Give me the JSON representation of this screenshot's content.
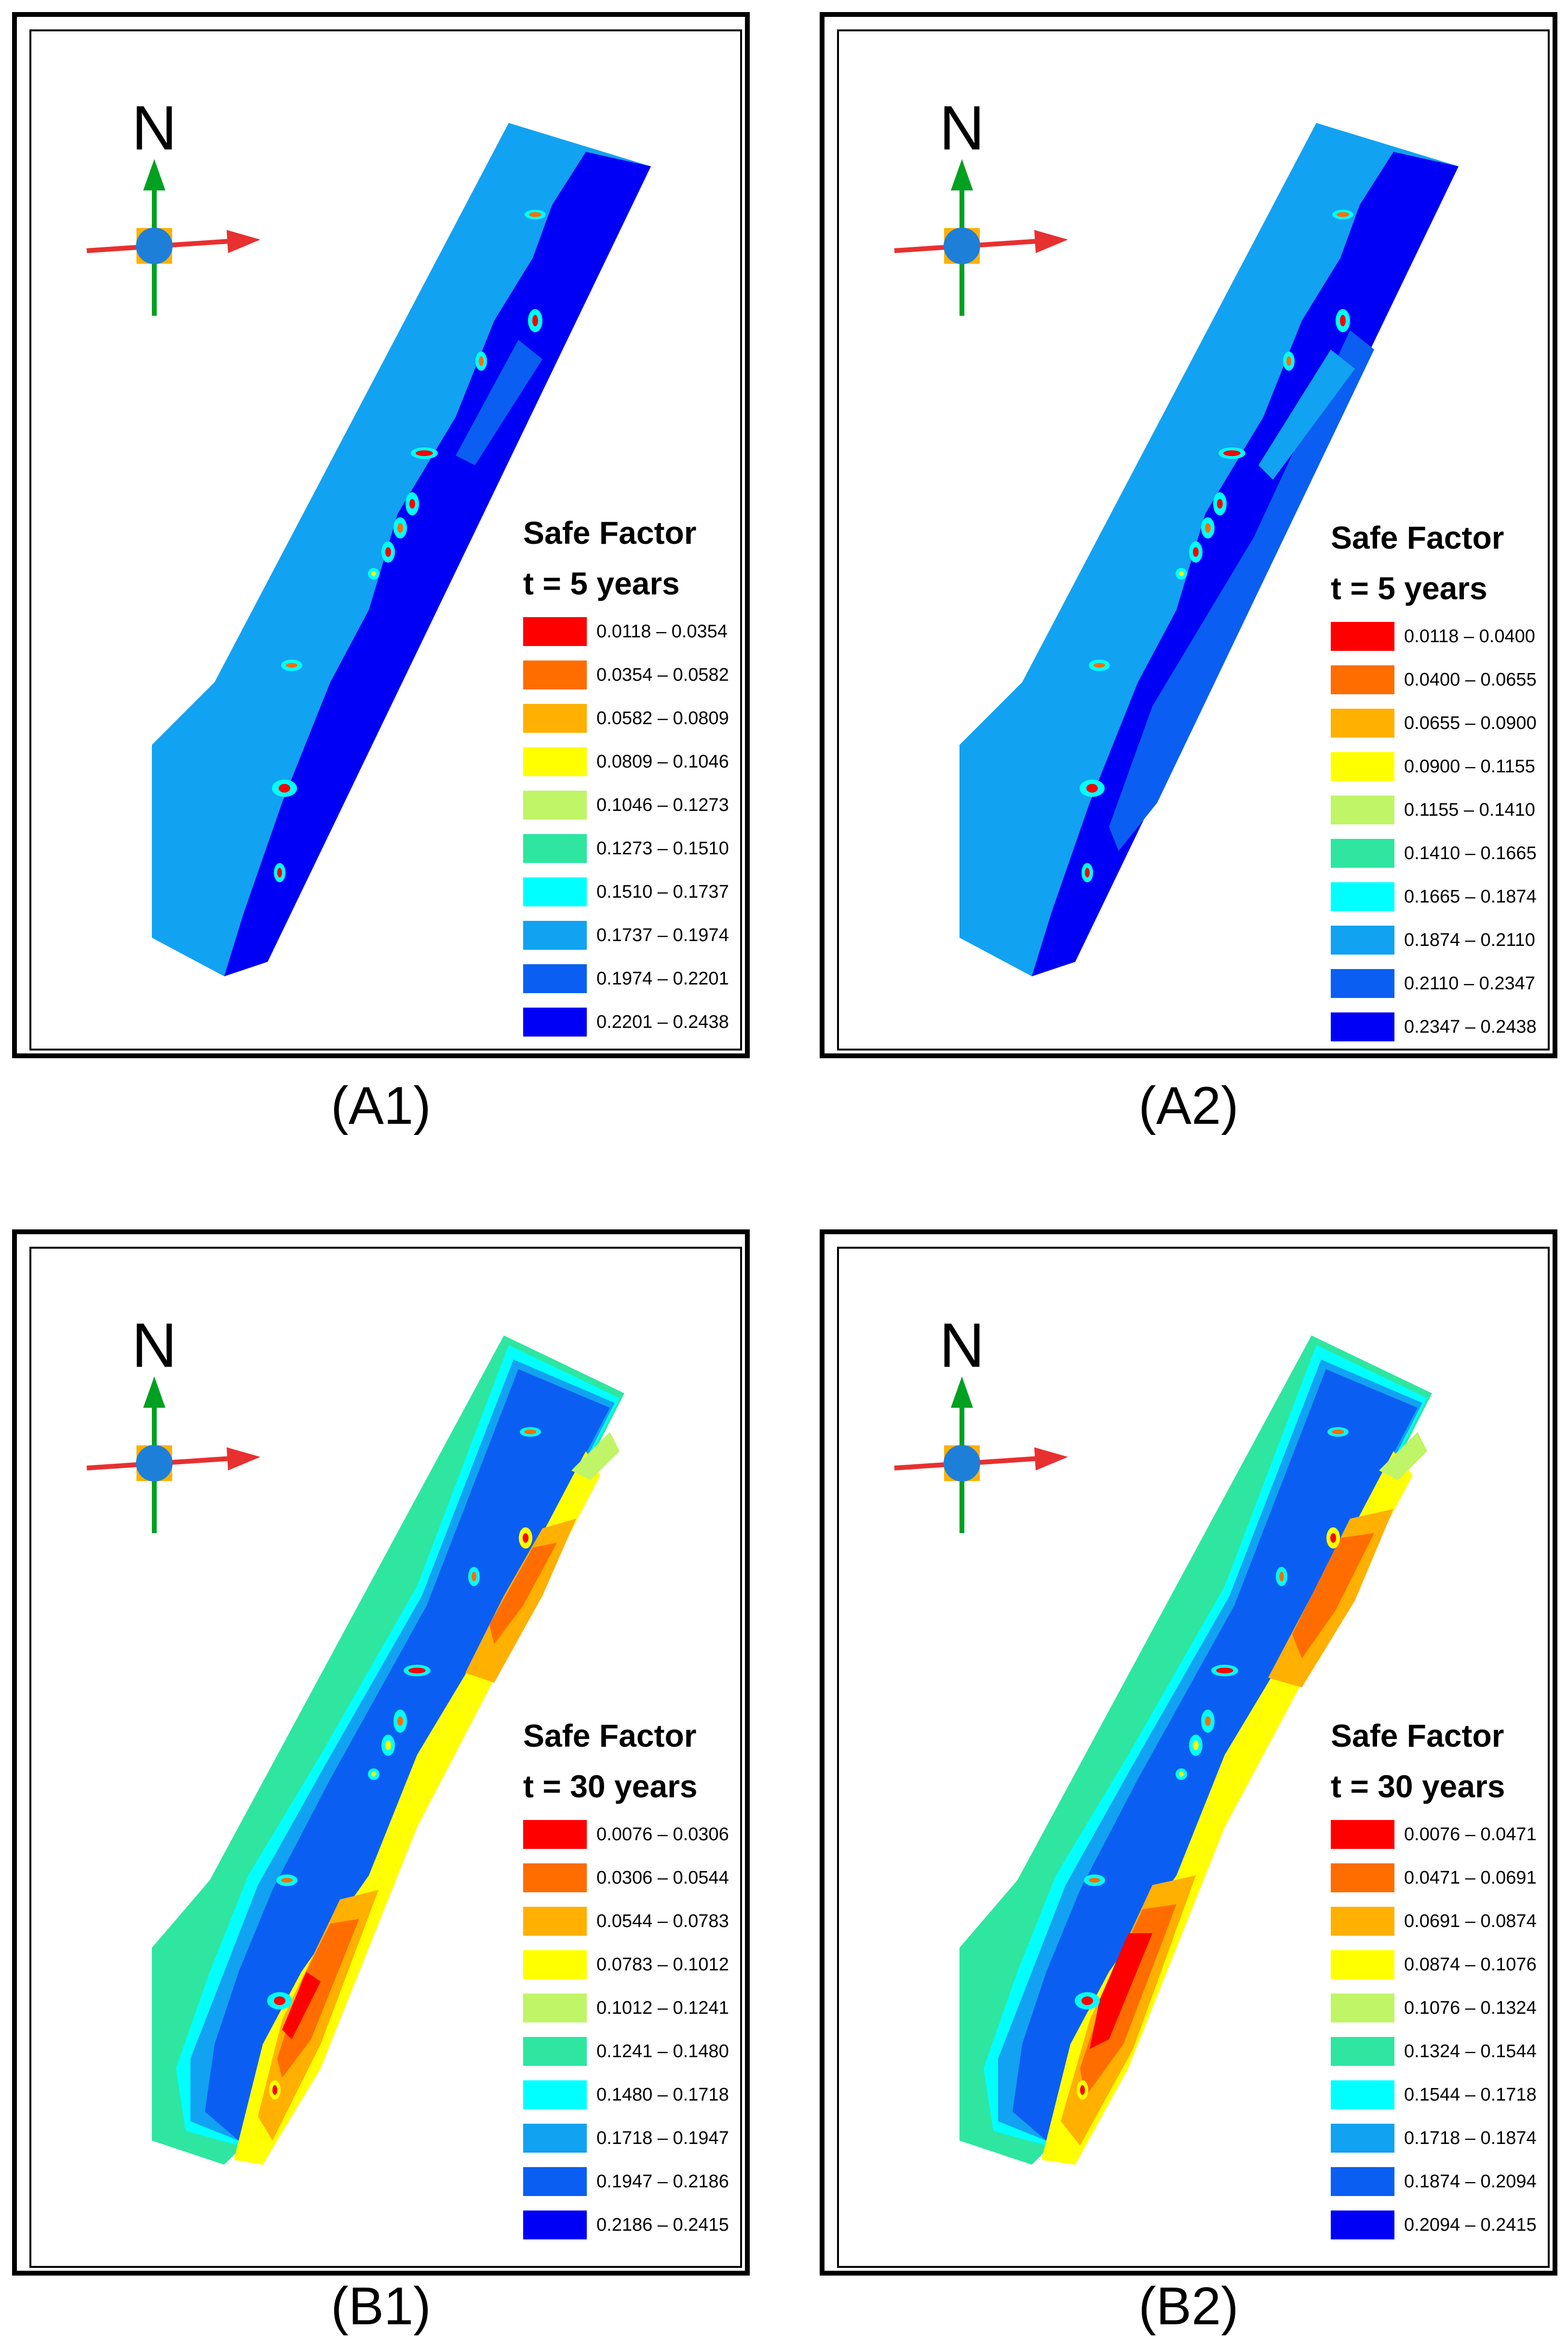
{
  "compass": {
    "north_label": "N"
  },
  "panels": [
    {
      "caption": "(A1)",
      "legend_title": "Safe Factor",
      "time_label": "t = 5 years",
      "classes": [
        {
          "range": "0.0118 – 0.0354",
          "color": "#ff0000"
        },
        {
          "range": "0.0354 – 0.0582",
          "color": "#ff6d00"
        },
        {
          "range": "0.0582 – 0.0809",
          "color": "#ffb000"
        },
        {
          "range": "0.0809 – 0.1046",
          "color": "#ffff00"
        },
        {
          "range": "0.1046 – 0.1273",
          "color": "#bff566"
        },
        {
          "range": "0.1273 – 0.1510",
          "color": "#2ee6a0"
        },
        {
          "range": "0.1510 – 0.1737",
          "color": "#00ffff"
        },
        {
          "range": "0.1737 – 0.1974",
          "color": "#12a2f2"
        },
        {
          "range": "0.1974 – 0.2201",
          "color": "#0a5ff2"
        },
        {
          "range": "0.2201 – 0.2438",
          "color": "#0000f6"
        }
      ]
    },
    {
      "caption": "(A2)",
      "legend_title": "Safe Factor",
      "time_label": "t = 5 years",
      "classes": [
        {
          "range": "0.0118 – 0.0400",
          "color": "#ff0000"
        },
        {
          "range": "0.0400 – 0.0655",
          "color": "#ff6d00"
        },
        {
          "range": "0.0655 – 0.0900",
          "color": "#ffb000"
        },
        {
          "range": "0.0900 – 0.1155",
          "color": "#ffff00"
        },
        {
          "range": "0.1155 – 0.1410",
          "color": "#bff566"
        },
        {
          "range": "0.1410 – 0.1665",
          "color": "#2ee6a0"
        },
        {
          "range": "0.1665 – 0.1874",
          "color": "#00ffff"
        },
        {
          "range": "0.1874 – 0.2110",
          "color": "#12a2f2"
        },
        {
          "range": "0.2110 – 0.2347",
          "color": "#0a5ff2"
        },
        {
          "range": "0.2347 – 0.2438",
          "color": "#0000f6"
        }
      ]
    },
    {
      "caption": "(B1)",
      "legend_title": "Safe Factor",
      "time_label": "t = 30 years",
      "classes": [
        {
          "range": "0.0076 – 0.0306",
          "color": "#ff0000"
        },
        {
          "range": "0.0306 – 0.0544",
          "color": "#ff6d00"
        },
        {
          "range": "0.0544 – 0.0783",
          "color": "#ffb000"
        },
        {
          "range": "0.0783 – 0.1012",
          "color": "#ffff00"
        },
        {
          "range": "0.1012 – 0.1241",
          "color": "#bff566"
        },
        {
          "range": "0.1241 – 0.1480",
          "color": "#2ee6a0"
        },
        {
          "range": "0.1480 – 0.1718",
          "color": "#00ffff"
        },
        {
          "range": "0.1718 – 0.1947",
          "color": "#12a2f2"
        },
        {
          "range": "0.1947 – 0.2186",
          "color": "#0a5ff2"
        },
        {
          "range": "0.2186 – 0.2415",
          "color": "#0000f6"
        }
      ]
    },
    {
      "caption": "(B2)",
      "legend_title": "Safe Factor",
      "time_label": "t = 30 years",
      "classes": [
        {
          "range": "0.0076 – 0.0471",
          "color": "#ff0000"
        },
        {
          "range": "0.0471 – 0.0691",
          "color": "#ff6d00"
        },
        {
          "range": "0.0691 – 0.0874",
          "color": "#ffb000"
        },
        {
          "range": "0.0874 – 0.1076",
          "color": "#ffff00"
        },
        {
          "range": "0.1076 – 0.1324",
          "color": "#bff566"
        },
        {
          "range": "0.1324 – 0.1544",
          "color": "#2ee6a0"
        },
        {
          "range": "0.1544 – 0.1718",
          "color": "#00ffff"
        },
        {
          "range": "0.1718 – 0.1874",
          "color": "#12a2f2"
        },
        {
          "range": "0.1874 – 0.2094",
          "color": "#0a5ff2"
        },
        {
          "range": "0.2094 – 0.2415",
          "color": "#0000f6"
        }
      ]
    }
  ]
}
